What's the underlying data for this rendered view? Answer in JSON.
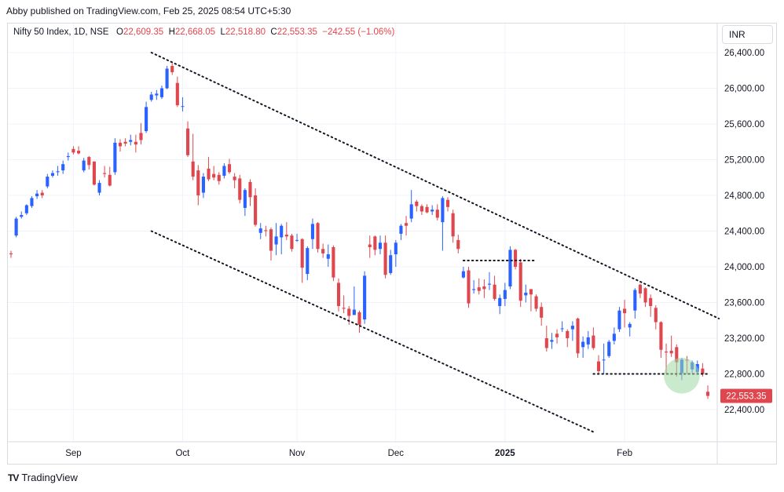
{
  "header": {
    "text": "Abby published on TradingView.com, Feb 25, 2025 08:54 UTC+5:30"
  },
  "legend": {
    "symbol": "Nifty 50 Index, 1D, NSE",
    "o_label": "O",
    "o_value": "22,609.35",
    "h_label": "H",
    "h_value": "22,668.05",
    "l_label": "L",
    "l_value": "22,518.80",
    "c_label": "C",
    "c_value": "22,553.35",
    "change": "−242.55 (−1.06%)"
  },
  "currency_button": "INR",
  "footer": {
    "logo": "TV",
    "brand": "TradingView"
  },
  "colors": {
    "up": "#2962ff",
    "down": "#e0464d",
    "highlight": "#9fd9a6"
  },
  "chart_data": {
    "type": "candlestick",
    "title": "Nifty 50 Index, 1D, NSE",
    "y_ticks": [
      26400,
      26000,
      25600,
      25200,
      24800,
      24400,
      24000,
      23600,
      23200,
      22800,
      22400
    ],
    "y_tick_labels": [
      "26,400.00",
      "26,000.00",
      "25,600.00",
      "25,200.00",
      "24,800.00",
      "24,400.00",
      "24,000.00",
      "23,600.00",
      "23,200.00",
      "22,800.00",
      "22,400.00"
    ],
    "ylim": [
      22000,
      26800
    ],
    "x_tick_labels": [
      {
        "label": "Sep",
        "date": "2024-09-02"
      },
      {
        "label": "Oct",
        "date": "2024-10-01"
      },
      {
        "label": "Nov",
        "date": "2024-11-01"
      },
      {
        "label": "Dec",
        "date": "2024-12-02"
      },
      {
        "label": "2025",
        "date": "2025-01-01"
      },
      {
        "label": "Feb",
        "date": "2025-02-01"
      }
    ],
    "last_price_label": "22,553.35",
    "last_price": 22553.35,
    "grid": true,
    "candles": [
      {
        "d": "2024-08-14",
        "o": 24150,
        "h": 24180,
        "l": 24100,
        "c": 24140
      },
      {
        "d": "2024-08-16",
        "o": 24350,
        "h": 24560,
        "l": 24330,
        "c": 24540
      },
      {
        "d": "2024-08-19",
        "o": 24560,
        "h": 24620,
        "l": 24540,
        "c": 24580
      },
      {
        "d": "2024-08-20",
        "o": 24600,
        "h": 24700,
        "l": 24580,
        "c": 24690
      },
      {
        "d": "2024-08-21",
        "o": 24680,
        "h": 24790,
        "l": 24660,
        "c": 24770
      },
      {
        "d": "2024-08-22",
        "o": 24790,
        "h": 24860,
        "l": 24760,
        "c": 24820
      },
      {
        "d": "2024-08-23",
        "o": 24830,
        "h": 24860,
        "l": 24770,
        "c": 24800
      },
      {
        "d": "2024-08-26",
        "o": 24900,
        "h": 25040,
        "l": 24880,
        "c": 25010
      },
      {
        "d": "2024-08-27",
        "o": 25020,
        "h": 25080,
        "l": 25000,
        "c": 25050
      },
      {
        "d": "2024-08-28",
        "o": 25060,
        "h": 25130,
        "l": 25020,
        "c": 25070
      },
      {
        "d": "2024-08-29",
        "o": 25080,
        "h": 25190,
        "l": 25040,
        "c": 25150
      },
      {
        "d": "2024-08-30",
        "o": 25230,
        "h": 25280,
        "l": 25190,
        "c": 25240
      },
      {
        "d": "2024-09-02",
        "o": 25320,
        "h": 25350,
        "l": 25260,
        "c": 25280
      },
      {
        "d": "2024-09-03",
        "o": 25300,
        "h": 25350,
        "l": 25260,
        "c": 25270
      },
      {
        "d": "2024-09-04",
        "o": 25080,
        "h": 25220,
        "l": 25060,
        "c": 25190
      },
      {
        "d": "2024-09-05",
        "o": 25230,
        "h": 25240,
        "l": 25090,
        "c": 25140
      },
      {
        "d": "2024-09-06",
        "o": 25180,
        "h": 25180,
        "l": 24910,
        "c": 24920
      },
      {
        "d": "2024-09-09",
        "o": 24830,
        "h": 24970,
        "l": 24800,
        "c": 24940
      },
      {
        "d": "2024-09-10",
        "o": 25050,
        "h": 25130,
        "l": 25000,
        "c": 25040
      },
      {
        "d": "2024-09-11",
        "o": 25030,
        "h": 25120,
        "l": 24900,
        "c": 24910
      },
      {
        "d": "2024-09-12",
        "o": 25060,
        "h": 25440,
        "l": 25030,
        "c": 25390
      },
      {
        "d": "2024-09-13",
        "o": 25390,
        "h": 25430,
        "l": 25290,
        "c": 25350
      },
      {
        "d": "2024-09-16",
        "o": 25400,
        "h": 25440,
        "l": 25350,
        "c": 25380
      },
      {
        "d": "2024-09-17",
        "o": 25400,
        "h": 25480,
        "l": 25360,
        "c": 25420
      },
      {
        "d": "2024-09-18",
        "o": 25400,
        "h": 25480,
        "l": 25280,
        "c": 25370
      },
      {
        "d": "2024-09-19",
        "o": 25500,
        "h": 25610,
        "l": 25370,
        "c": 25420
      },
      {
        "d": "2024-09-20",
        "o": 25520,
        "h": 25850,
        "l": 25500,
        "c": 25790
      },
      {
        "d": "2024-09-23",
        "o": 25870,
        "h": 25960,
        "l": 25850,
        "c": 25930
      },
      {
        "d": "2024-09-24",
        "o": 25920,
        "h": 25980,
        "l": 25870,
        "c": 25940
      },
      {
        "d": "2024-09-25",
        "o": 25900,
        "h": 26030,
        "l": 25880,
        "c": 26000
      },
      {
        "d": "2024-09-26",
        "o": 26000,
        "h": 26250,
        "l": 25990,
        "c": 26220
      },
      {
        "d": "2024-09-27",
        "o": 26250,
        "h": 26280,
        "l": 26150,
        "c": 26180
      },
      {
        "d": "2024-09-30",
        "o": 26060,
        "h": 26130,
        "l": 25790,
        "c": 25810
      },
      {
        "d": "2024-10-01",
        "o": 25800,
        "h": 25900,
        "l": 25740,
        "c": 25800
      },
      {
        "d": "2024-10-03",
        "o": 25550,
        "h": 25630,
        "l": 25230,
        "c": 25250
      },
      {
        "d": "2024-10-04",
        "o": 25180,
        "h": 25490,
        "l": 24970,
        "c": 25010
      },
      {
        "d": "2024-10-07",
        "o": 25080,
        "h": 25140,
        "l": 24690,
        "c": 24800
      },
      {
        "d": "2024-10-08",
        "o": 24830,
        "h": 25050,
        "l": 24770,
        "c": 25010
      },
      {
        "d": "2024-10-09",
        "o": 25100,
        "h": 25230,
        "l": 24960,
        "c": 24980
      },
      {
        "d": "2024-10-10",
        "o": 25040,
        "h": 25130,
        "l": 24970,
        "c": 25000
      },
      {
        "d": "2024-10-11",
        "o": 25030,
        "h": 25060,
        "l": 24920,
        "c": 24960
      },
      {
        "d": "2024-10-14",
        "o": 25020,
        "h": 25160,
        "l": 24990,
        "c": 25130
      },
      {
        "d": "2024-10-15",
        "o": 25150,
        "h": 25210,
        "l": 25040,
        "c": 25060
      },
      {
        "d": "2024-10-16",
        "o": 25010,
        "h": 25050,
        "l": 24880,
        "c": 24970
      },
      {
        "d": "2024-10-17",
        "o": 24990,
        "h": 25030,
        "l": 24710,
        "c": 24750
      },
      {
        "d": "2024-10-18",
        "o": 24660,
        "h": 24880,
        "l": 24570,
        "c": 24860
      },
      {
        "d": "2024-10-21",
        "o": 24950,
        "h": 24980,
        "l": 24680,
        "c": 24780
      },
      {
        "d": "2024-10-22",
        "o": 24800,
        "h": 24880,
        "l": 24450,
        "c": 24470
      },
      {
        "d": "2024-10-23",
        "o": 24380,
        "h": 24490,
        "l": 24310,
        "c": 24430
      },
      {
        "d": "2024-10-24",
        "o": 24410,
        "h": 24460,
        "l": 24340,
        "c": 24400
      },
      {
        "d": "2024-10-25",
        "o": 24420,
        "h": 24440,
        "l": 24070,
        "c": 24180
      },
      {
        "d": "2024-10-28",
        "o": 24250,
        "h": 24490,
        "l": 24130,
        "c": 24340
      },
      {
        "d": "2024-10-29",
        "o": 24330,
        "h": 24480,
        "l": 24140,
        "c": 24460
      },
      {
        "d": "2024-10-30",
        "o": 24360,
        "h": 24500,
        "l": 24300,
        "c": 24340
      },
      {
        "d": "2024-10-31",
        "o": 24350,
        "h": 24370,
        "l": 24170,
        "c": 24200
      },
      {
        "d": "2024-11-01",
        "o": 24300,
        "h": 24370,
        "l": 24280,
        "c": 24300
      },
      {
        "d": "2024-11-04",
        "o": 24310,
        "h": 24320,
        "l": 23820,
        "c": 23990
      },
      {
        "d": "2024-11-05",
        "o": 23920,
        "h": 24230,
        "l": 23850,
        "c": 24210
      },
      {
        "d": "2024-11-06",
        "o": 24310,
        "h": 24540,
        "l": 24200,
        "c": 24480
      },
      {
        "d": "2024-11-07",
        "o": 24490,
        "h": 24500,
        "l": 24160,
        "c": 24200
      },
      {
        "d": "2024-11-08",
        "o": 24200,
        "h": 24260,
        "l": 24100,
        "c": 24150
      },
      {
        "d": "2024-11-11",
        "o": 24090,
        "h": 24250,
        "l": 24000,
        "c": 24140
      },
      {
        "d": "2024-11-12",
        "o": 24220,
        "h": 24240,
        "l": 23840,
        "c": 23880
      },
      {
        "d": "2024-11-13",
        "o": 23820,
        "h": 23870,
        "l": 23500,
        "c": 23560
      },
      {
        "d": "2024-11-14",
        "o": 23540,
        "h": 23680,
        "l": 23480,
        "c": 23530
      },
      {
        "d": "2024-11-18",
        "o": 23530,
        "h": 23560,
        "l": 23350,
        "c": 23450
      },
      {
        "d": "2024-11-19",
        "o": 23460,
        "h": 23780,
        "l": 23460,
        "c": 23520
      },
      {
        "d": "2024-11-21",
        "o": 23490,
        "h": 23510,
        "l": 23260,
        "c": 23350
      },
      {
        "d": "2024-11-22",
        "o": 23410,
        "h": 23950,
        "l": 23360,
        "c": 23900
      },
      {
        "d": "2024-11-25",
        "o": 24250,
        "h": 24350,
        "l": 24100,
        "c": 24220
      },
      {
        "d": "2024-11-26",
        "o": 24340,
        "h": 24350,
        "l": 24130,
        "c": 24190
      },
      {
        "d": "2024-11-27",
        "o": 24200,
        "h": 24350,
        "l": 24140,
        "c": 24270
      },
      {
        "d": "2024-11-28",
        "o": 24270,
        "h": 24350,
        "l": 23870,
        "c": 23910
      },
      {
        "d": "2024-11-29",
        "o": 23930,
        "h": 24190,
        "l": 23910,
        "c": 24130
      },
      {
        "d": "2024-12-02",
        "o": 24140,
        "h": 24300,
        "l": 24000,
        "c": 24270
      },
      {
        "d": "2024-12-03",
        "o": 24370,
        "h": 24480,
        "l": 24300,
        "c": 24460
      },
      {
        "d": "2024-12-04",
        "o": 24490,
        "h": 24570,
        "l": 24350,
        "c": 24460
      },
      {
        "d": "2024-12-05",
        "o": 24540,
        "h": 24860,
        "l": 24500,
        "c": 24700
      },
      {
        "d": "2024-12-06",
        "o": 24730,
        "h": 24750,
        "l": 24620,
        "c": 24680
      },
      {
        "d": "2024-12-09",
        "o": 24680,
        "h": 24700,
        "l": 24580,
        "c": 24620
      },
      {
        "d": "2024-12-10",
        "o": 24670,
        "h": 24700,
        "l": 24600,
        "c": 24610
      },
      {
        "d": "2024-12-11",
        "o": 24620,
        "h": 24690,
        "l": 24580,
        "c": 24640
      },
      {
        "d": "2024-12-12",
        "o": 24640,
        "h": 24700,
        "l": 24520,
        "c": 24550
      },
      {
        "d": "2024-12-13",
        "o": 24500,
        "h": 24790,
        "l": 24180,
        "c": 24770
      },
      {
        "d": "2024-12-16",
        "o": 24750,
        "h": 24780,
        "l": 24620,
        "c": 24670
      },
      {
        "d": "2024-12-17",
        "o": 24600,
        "h": 24640,
        "l": 24270,
        "c": 24340
      },
      {
        "d": "2024-12-18",
        "o": 24300,
        "h": 24360,
        "l": 24150,
        "c": 24200
      },
      {
        "d": "2024-12-19",
        "o": 23880,
        "h": 24000,
        "l": 23870,
        "c": 23950
      },
      {
        "d": "2024-12-20",
        "o": 23960,
        "h": 24000,
        "l": 23540,
        "c": 23590
      },
      {
        "d": "2024-12-23",
        "o": 23740,
        "h": 23850,
        "l": 23700,
        "c": 23750
      },
      {
        "d": "2024-12-24",
        "o": 23770,
        "h": 23870,
        "l": 23690,
        "c": 23730
      },
      {
        "d": "2024-12-26",
        "o": 23780,
        "h": 23860,
        "l": 23650,
        "c": 23750
      },
      {
        "d": "2024-12-27",
        "o": 23800,
        "h": 23940,
        "l": 23740,
        "c": 23810
      },
      {
        "d": "2024-12-30",
        "o": 23800,
        "h": 23900,
        "l": 23620,
        "c": 23640
      },
      {
        "d": "2024-12-31",
        "o": 23560,
        "h": 23690,
        "l": 23470,
        "c": 23650
      },
      {
        "d": "2025-01-01",
        "o": 23640,
        "h": 23820,
        "l": 23560,
        "c": 23740
      },
      {
        "d": "2025-01-02",
        "o": 23780,
        "h": 24230,
        "l": 23750,
        "c": 24190
      },
      {
        "d": "2025-01-03",
        "o": 24190,
        "h": 24200,
        "l": 23970,
        "c": 24000
      },
      {
        "d": "2025-01-06",
        "o": 24050,
        "h": 24090,
        "l": 23550,
        "c": 23620
      },
      {
        "d": "2025-01-07",
        "o": 23680,
        "h": 23800,
        "l": 23600,
        "c": 23710
      },
      {
        "d": "2025-01-08",
        "o": 23750,
        "h": 23750,
        "l": 23500,
        "c": 23690
      },
      {
        "d": "2025-01-09",
        "o": 23670,
        "h": 23690,
        "l": 23500,
        "c": 23530
      },
      {
        "d": "2025-01-10",
        "o": 23550,
        "h": 23600,
        "l": 23340,
        "c": 23430
      },
      {
        "d": "2025-01-13",
        "o": 23200,
        "h": 23340,
        "l": 23050,
        "c": 23090
      },
      {
        "d": "2025-01-14",
        "o": 23160,
        "h": 23260,
        "l": 23080,
        "c": 23180
      },
      {
        "d": "2025-01-15",
        "o": 23250,
        "h": 23300,
        "l": 23140,
        "c": 23210
      },
      {
        "d": "2025-01-16",
        "o": 23310,
        "h": 23390,
        "l": 23270,
        "c": 23310
      },
      {
        "d": "2025-01-17",
        "o": 23280,
        "h": 23300,
        "l": 23100,
        "c": 23200
      },
      {
        "d": "2025-01-20",
        "o": 23300,
        "h": 23390,
        "l": 23170,
        "c": 23340
      },
      {
        "d": "2025-01-21",
        "o": 23420,
        "h": 23430,
        "l": 22980,
        "c": 23030
      },
      {
        "d": "2025-01-22",
        "o": 23100,
        "h": 23220,
        "l": 22980,
        "c": 23160
      },
      {
        "d": "2025-01-23",
        "o": 23130,
        "h": 23280,
        "l": 23080,
        "c": 23210
      },
      {
        "d": "2025-01-24",
        "o": 23230,
        "h": 23320,
        "l": 23070,
        "c": 23090
      },
      {
        "d": "2025-01-27",
        "o": 22940,
        "h": 23010,
        "l": 22790,
        "c": 22830
      },
      {
        "d": "2025-01-28",
        "o": 22960,
        "h": 23140,
        "l": 22800,
        "c": 22960
      },
      {
        "d": "2025-01-29",
        "o": 23000,
        "h": 23180,
        "l": 22980,
        "c": 23160
      },
      {
        "d": "2025-01-30",
        "o": 23170,
        "h": 23320,
        "l": 23130,
        "c": 23250
      },
      {
        "d": "2025-01-31",
        "o": 23300,
        "h": 23550,
        "l": 23270,
        "c": 23510
      },
      {
        "d": "2025-02-01",
        "o": 23530,
        "h": 23630,
        "l": 23320,
        "c": 23480
      },
      {
        "d": "2025-02-03",
        "o": 23320,
        "h": 23380,
        "l": 23220,
        "c": 23360
      },
      {
        "d": "2025-02-04",
        "o": 23510,
        "h": 23760,
        "l": 23420,
        "c": 23740
      },
      {
        "d": "2025-02-05",
        "o": 23800,
        "h": 23810,
        "l": 23650,
        "c": 23700
      },
      {
        "d": "2025-02-06",
        "o": 23760,
        "h": 23770,
        "l": 23550,
        "c": 23600
      },
      {
        "d": "2025-02-07",
        "o": 23650,
        "h": 23690,
        "l": 23440,
        "c": 23560
      },
      {
        "d": "2025-02-10",
        "o": 23540,
        "h": 23570,
        "l": 23300,
        "c": 23380
      },
      {
        "d": "2025-02-11",
        "o": 23380,
        "h": 23390,
        "l": 22980,
        "c": 23070
      },
      {
        "d": "2025-02-12",
        "o": 23050,
        "h": 23140,
        "l": 22800,
        "c": 23040
      },
      {
        "d": "2025-02-13",
        "o": 23060,
        "h": 23230,
        "l": 22990,
        "c": 23030
      },
      {
        "d": "2025-02-14",
        "o": 23100,
        "h": 23130,
        "l": 22770,
        "c": 22930
      },
      {
        "d": "2025-02-17",
        "o": 22810,
        "h": 22980,
        "l": 22730,
        "c": 22960
      },
      {
        "d": "2025-02-18",
        "o": 22960,
        "h": 23000,
        "l": 22800,
        "c": 22950
      },
      {
        "d": "2025-02-19",
        "o": 22850,
        "h": 22950,
        "l": 22810,
        "c": 22930
      },
      {
        "d": "2025-02-20",
        "o": 22820,
        "h": 22950,
        "l": 22790,
        "c": 22910
      },
      {
        "d": "2025-02-21",
        "o": 22860,
        "h": 22920,
        "l": 22770,
        "c": 22800
      },
      {
        "d": "2025-02-24",
        "o": 22600,
        "h": 22670,
        "l": 22520,
        "c": 22553.35
      }
    ],
    "annotations": [
      {
        "type": "trendline",
        "style": "dotted",
        "from": {
          "d": "2024-09-23",
          "v": 26400
        },
        "to": {
          "d": "2025-02-27",
          "v": 23420
        }
      },
      {
        "type": "trendline",
        "style": "dotted",
        "from": {
          "d": "2024-09-23",
          "v": 24400
        },
        "to": {
          "d": "2025-01-24",
          "v": 22150
        }
      },
      {
        "type": "hline",
        "style": "dotted",
        "from": {
          "d": "2024-12-19",
          "v": 24070
        },
        "to": {
          "d": "2025-01-09",
          "v": 24070
        }
      },
      {
        "type": "hline",
        "style": "dotted",
        "from": {
          "d": "2025-01-24",
          "v": 22800
        },
        "to": {
          "d": "2025-02-24",
          "v": 22800
        }
      },
      {
        "type": "circle",
        "at": {
          "d": "2025-02-17",
          "v": 22780
        },
        "radius_value": 200
      }
    ]
  }
}
